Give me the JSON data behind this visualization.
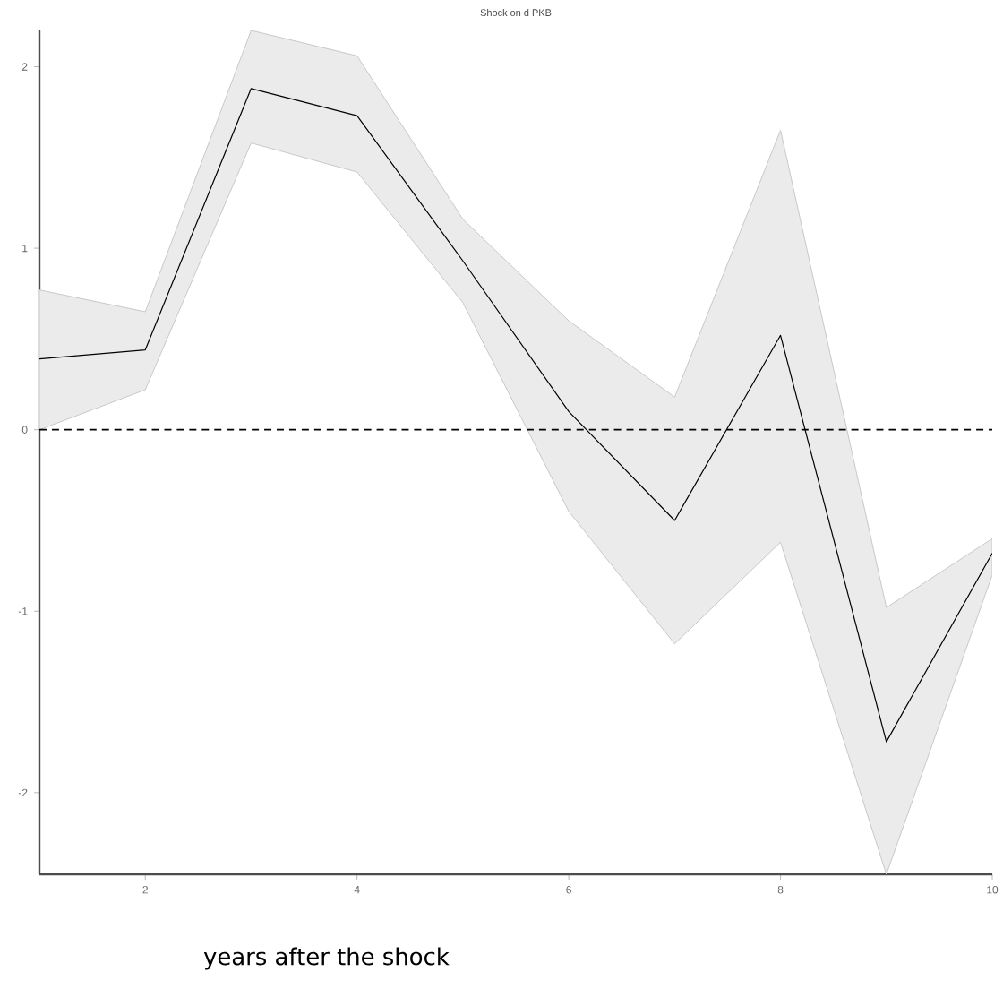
{
  "chart_data": {
    "type": "line",
    "title": "Shock on d PKB",
    "xlabel": "years after the shock",
    "x": [
      1,
      2,
      3,
      4,
      5,
      6,
      7,
      8,
      9,
      10
    ],
    "series": [
      {
        "color": "#000000",
        "values": [
          0.39,
          0.44,
          1.88,
          1.73,
          0.93,
          0.1,
          -0.5,
          0.52,
          -1.72,
          -0.68
        ],
        "lower": [
          0.0,
          0.22,
          1.58,
          1.42,
          0.7,
          -0.45,
          -1.18,
          -0.62,
          -2.45,
          -0.8
        ],
        "upper": [
          0.77,
          0.65,
          2.2,
          2.06,
          1.16,
          0.6,
          0.18,
          1.65,
          -0.98,
          -0.6
        ]
      }
    ],
    "xlim": [
      1,
      10
    ],
    "ylim": [
      -2.45,
      2.2
    ],
    "xticks": [
      2,
      4,
      6,
      8,
      10
    ],
    "yticks": [
      -2,
      -1,
      0,
      1,
      2
    ],
    "ref_lines": [
      {
        "axis": "y",
        "value": 0,
        "line_style": "dashed",
        "color": "#000000"
      }
    ],
    "grid": false,
    "marker": "none",
    "line_style": "solid"
  }
}
